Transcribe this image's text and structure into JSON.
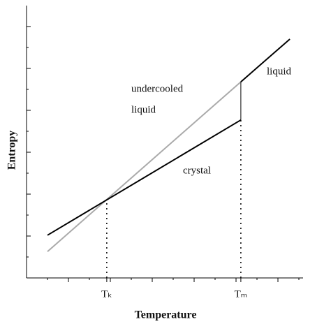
{
  "chart_data": {
    "type": "line",
    "xlabel": "Temperature",
    "ylabel": "Entropy",
    "xlim": [
      0,
      13.2
    ],
    "ylim": [
      0,
      6.5
    ],
    "xticks": [
      {
        "value": 3.83,
        "label": "Tₖ"
      },
      {
        "value": 10.23,
        "label": "Tₘ"
      }
    ],
    "series": [
      {
        "color": "#aaaaaa",
        "x": [
          1,
          10.23
        ],
        "values": [
          0.63,
          4.68
        ]
      },
      {
        "color": "#000000",
        "x": [
          1,
          10.23
        ],
        "values": [
          1.02,
          3.77
        ]
      },
      {
        "color": "#000000",
        "x": [
          10.23,
          12.57
        ],
        "values": [
          4.68,
          5.7
        ]
      }
    ],
    "annotations": [
      "undercooled",
      "liquid",
      "liquid",
      "crystal"
    ]
  }
}
